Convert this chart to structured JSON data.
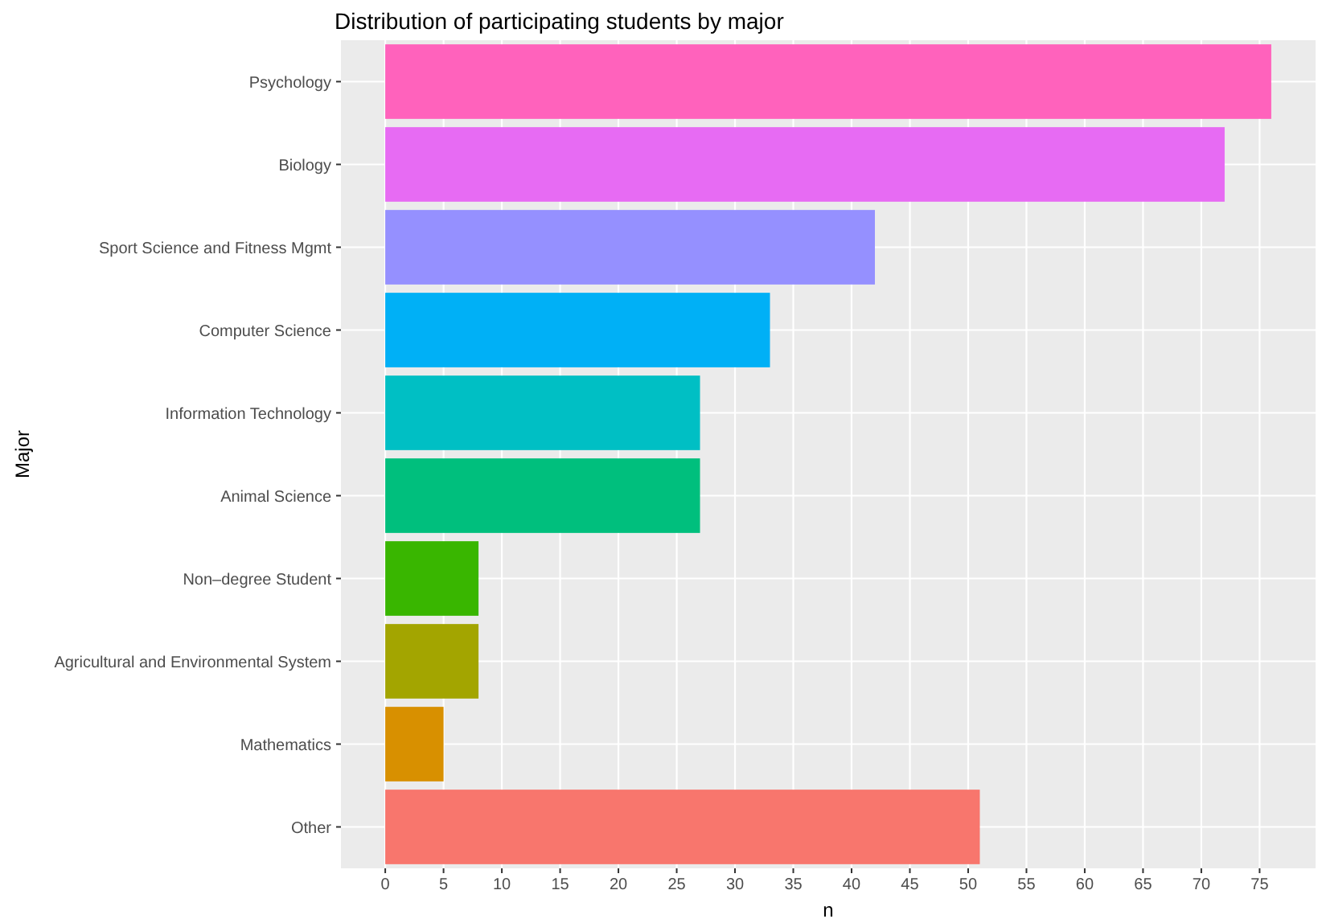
{
  "chart_data": {
    "type": "bar",
    "orientation": "horizontal",
    "title": "Distribution of participating students by major",
    "xlabel": "n",
    "ylabel": "Major",
    "categories": [
      "Psychology",
      "Biology",
      "Sport Science and Fitness Mgmt",
      "Computer Science",
      "Information Technology",
      "Animal Science",
      "Non–degree Student",
      "Agricultural and Environmental System",
      "Mathematics",
      "Other"
    ],
    "values": [
      76,
      72,
      42,
      33,
      27,
      27,
      8,
      8,
      5,
      51
    ],
    "colors": [
      "#ff62bc",
      "#e76bf3",
      "#9590ff",
      "#00b0f6",
      "#00bfc4",
      "#00bf7d",
      "#39b600",
      "#a3a500",
      "#d89000",
      "#f8766d"
    ],
    "xlim": [
      -3.8,
      79.8
    ],
    "xticks": [
      0,
      5,
      10,
      15,
      20,
      25,
      30,
      35,
      40,
      45,
      50,
      55,
      60,
      65,
      70,
      75
    ],
    "grid": true
  }
}
